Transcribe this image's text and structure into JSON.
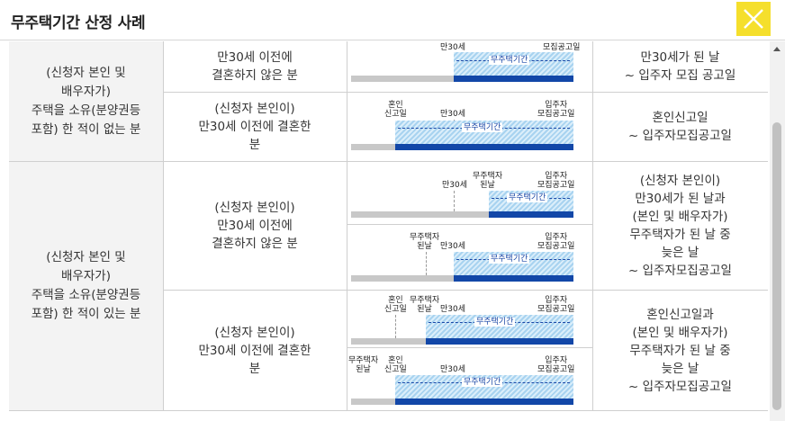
{
  "header": {
    "title": "무주택기간 산정 사례",
    "close_icon": "close-icon"
  },
  "accent_colors": {
    "close_bg": "#f5df2c",
    "period_bar": "#1247a8",
    "prior_bar": "#c8c8c8",
    "period_text": "#1a47a6"
  },
  "groups": [
    {
      "category": [
        "(신청자 본인 및",
        "배우자가)",
        "주택을 소유(분양권등",
        "포함) 한 적이 없는 분"
      ],
      "cases": [
        {
          "condition": [
            "만30세 이전에",
            "결혼하지 않은 분"
          ],
          "period": [
            "만30세가 된 날",
            "~ 입주자 모집 공고일"
          ],
          "diagrams": [
            {
              "top_labels": [
                "만30세",
                "모집공고일"
              ],
              "period_label": "무주택기간"
            }
          ]
        },
        {
          "condition": [
            "(신청자 본인이)",
            "만30세 이전에 결혼한",
            "분"
          ],
          "period": [
            "혼인신고일",
            "~ 입주자모집공고일"
          ],
          "diagrams": [
            {
              "labels": [
                "혼인\n신고일",
                "만30세",
                "입주자\n모집공고일"
              ],
              "period_label": "무주택기간"
            }
          ]
        }
      ]
    },
    {
      "category": [
        "(신청자 본인 및",
        "배우자가)",
        "주택을 소유(분양권등",
        "포함) 한 적이 있는 분"
      ],
      "cases": [
        {
          "condition": [
            "(신청자 본인이)",
            "만30세 이전에",
            "결혼하지 않은 분"
          ],
          "period": [
            "(신청자 본인이)",
            "만30세가 된 날과",
            "(본인 및 배우자가)",
            "무주택자가 된 날 중",
            "늦은 날",
            "~ 입주자모집공고일"
          ],
          "diagrams": [
            {
              "labels": [
                "만30세",
                "무주택자\n된날",
                "입주자\n모집공고일"
              ],
              "period_label": "무주택기간"
            },
            {
              "labels": [
                "무주택자\n된날",
                "만30세",
                "입주자\n모집공고일"
              ],
              "period_label": "무주택기간"
            }
          ]
        },
        {
          "condition": [
            "(신청자 본인이)",
            "만30세 이전에 결혼한",
            "분"
          ],
          "period": [
            "혼인신고일과",
            "(본인 및 배우자가)",
            "무주택자가 된 날 중",
            "늦은 날",
            "~ 입주자모집공고일"
          ],
          "diagrams": [
            {
              "labels": [
                "혼인\n신고일",
                "무주택자\n된날",
                "만30세",
                "입주자\n모집공고일"
              ],
              "period_label": "무주택기간"
            },
            {
              "labels": [
                "무주택자\n된날",
                "혼인\n신고일",
                "만30세",
                "입주자\n모집공고일"
              ],
              "period_label": "무주택기간"
            }
          ]
        }
      ]
    }
  ]
}
